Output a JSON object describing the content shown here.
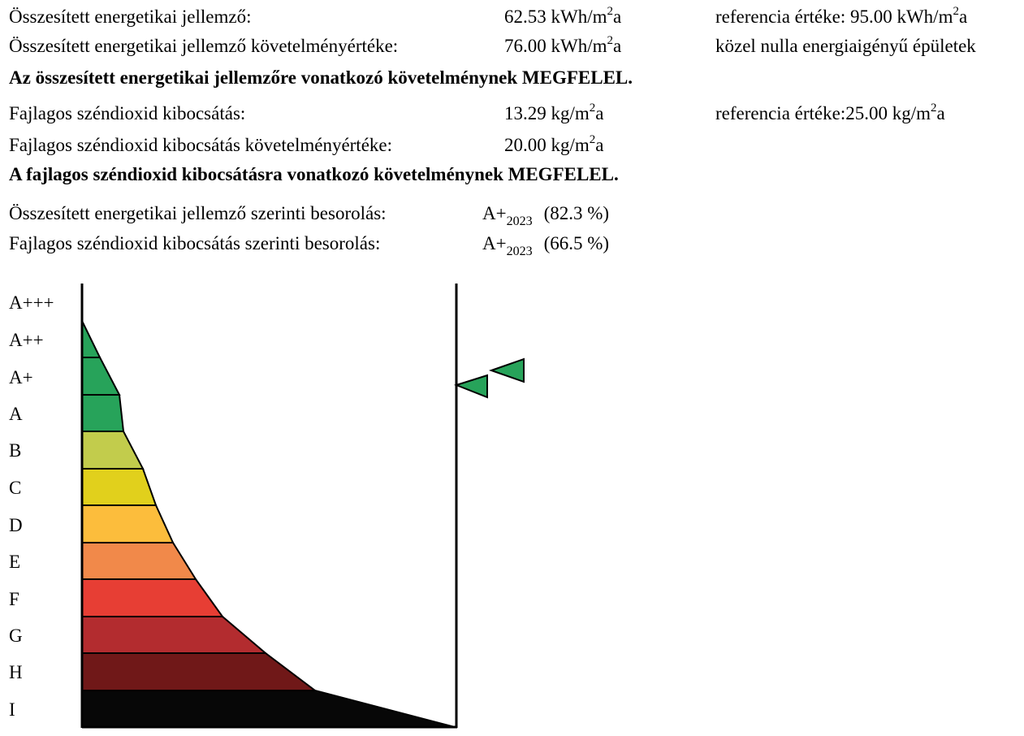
{
  "energy": {
    "label": "Összesített energetikai jellemző:",
    "value": "62.53 kWh/m",
    "value_sup": "2",
    "value_suffix": "a",
    "ref_prefix": "referencia értéke: 95.00 kWh/m",
    "ref_sup": "2",
    "ref_suffix": "a"
  },
  "energy_requirement": {
    "label": "Összesített energetikai jellemző követelményértéke:",
    "value": "76.00 kWh/m",
    "value_sup": "2",
    "value_suffix": "a",
    "note": "közel nulla energiaigényű épületek"
  },
  "energy_verdict": "Az összesített energetikai jellemzőre vonatkozó követelménynek MEGFELEL.",
  "co2": {
    "label": "Fajlagos széndioxid kibocsátás:",
    "value": "13.29 kg/m",
    "value_sup": "2",
    "value_suffix": "a",
    "ref_prefix": "referencia értéke:25.00 kg/m",
    "ref_sup": "2",
    "ref_suffix": "a"
  },
  "co2_requirement": {
    "label": "Fajlagos széndioxid kibocsátás követelményértéke:",
    "value": "20.00 kg/m",
    "value_sup": "2",
    "value_suffix": "a"
  },
  "co2_verdict": "A fajlagos széndioxid kibocsátásra vonatkozó követelménynek MEGFELEL.",
  "classification_energy": {
    "label": "Összesített energetikai jellemző szerinti besorolás:",
    "class": "A+",
    "class_sub": "2023",
    "percent": "(82.3 %)"
  },
  "classification_co2": {
    "label": "Fajlagos széndioxid kibocsátás szerinti besorolás:",
    "class": "A+",
    "class_sub": "2023",
    "percent": "(66.5 %)"
  },
  "scale": {
    "labels": [
      "A+++",
      "A++",
      "A+",
      "A",
      "B",
      "C",
      "D",
      "E",
      "F",
      "G",
      "H",
      "I"
    ],
    "colors": {
      "A++": "#27a35a",
      "A+": "#27a35a",
      "A": "#27a35a",
      "B": "#c2cc4c",
      "C": "#e1d01c",
      "D": "#fcbd3c",
      "E": "#f1894a",
      "F": "#e73e34",
      "G": "#b32c2f",
      "H": "#701818",
      "I": "#070707"
    },
    "marker_color": "#27a35a",
    "markers": [
      {
        "name": "energy",
        "class": "A+",
        "percent": 82.3
      },
      {
        "name": "co2",
        "class": "A+",
        "percent": 66.5
      }
    ]
  }
}
